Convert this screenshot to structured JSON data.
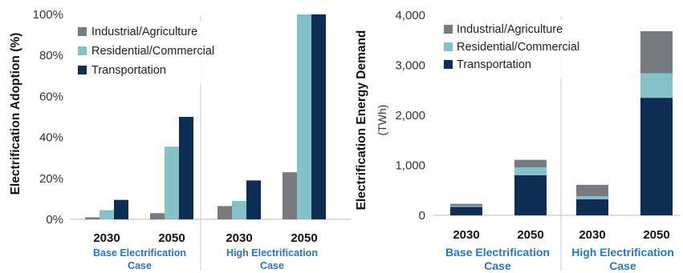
{
  "colors": {
    "industrial": "#767b80",
    "residential": "#86c0c9",
    "transportation": "#0e2d52",
    "group_label": "#2e75b6"
  },
  "chart_data": [
    {
      "type": "bar",
      "ylabel": "Electrification Adoption (%)",
      "ylim": [
        0,
        100
      ],
      "yticks": [
        "0%",
        "20%",
        "40%",
        "60%",
        "80%",
        "100%"
      ],
      "yticks_values": [
        0,
        20,
        40,
        60,
        80,
        100
      ],
      "legend": "top-left",
      "grid": false,
      "categories": [
        "2030",
        "2050",
        "2030",
        "2050"
      ],
      "groups": [
        {
          "label": "Base Electrification Case",
          "line1": "Base Electrification",
          "line2": "Case"
        },
        {
          "label": "High Electrification Case",
          "line1": "High Electrification",
          "line2": "Case"
        }
      ],
      "series": [
        {
          "name": "Industrial/Agriculture",
          "values": [
            1,
            3,
            6.5,
            23
          ]
        },
        {
          "name": "Residential/Commercial",
          "values": [
            4.5,
            35.5,
            9,
            100
          ]
        },
        {
          "name": "Transportation",
          "values": [
            9.5,
            50,
            19,
            100
          ]
        }
      ]
    },
    {
      "type": "bar",
      "stacked": true,
      "ylabel": "Electrification Energy Demand",
      "ylabel_unit": "(TWh)",
      "ylim": [
        0,
        4000
      ],
      "yticks": [
        "0",
        "1,000",
        "2,000",
        "3,000",
        "4,000"
      ],
      "yticks_values": [
        0,
        1000,
        2000,
        3000,
        4000
      ],
      "legend": "top-left",
      "grid": false,
      "categories": [
        "2030",
        "2050",
        "2030",
        "2050"
      ],
      "groups": [
        {
          "label": "Base Electrification Case",
          "line1": "Base Electrification",
          "line2": "Case"
        },
        {
          "label": "High Electrification Case",
          "line1": "High Electrification",
          "line2": "Case"
        }
      ],
      "series": [
        {
          "name": "Transportation",
          "values": [
            170,
            800,
            320,
            2350
          ]
        },
        {
          "name": "Residential/Commercial",
          "values": [
            20,
            160,
            60,
            490
          ]
        },
        {
          "name": "Industrial/Agriculture",
          "values": [
            40,
            150,
            230,
            840
          ]
        }
      ],
      "legend_order": [
        "Industrial/Agriculture",
        "Residential/Commercial",
        "Transportation"
      ]
    }
  ]
}
